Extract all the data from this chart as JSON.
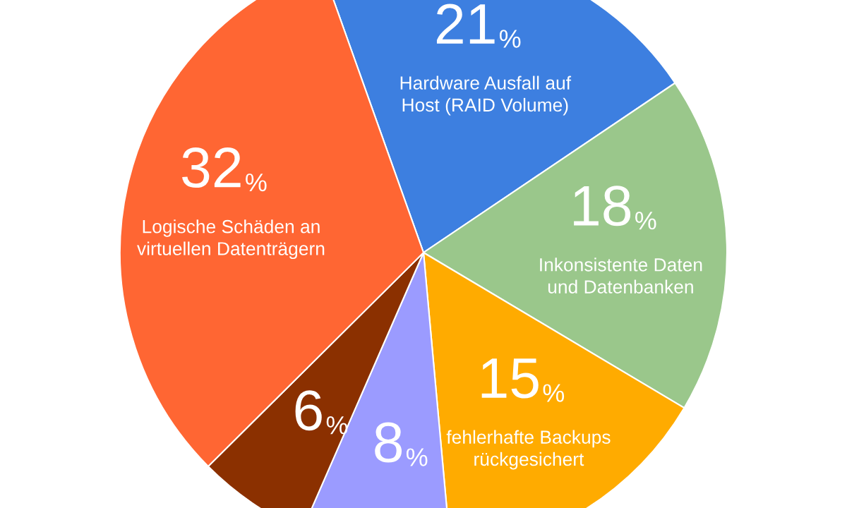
{
  "chart_data": {
    "type": "pie",
    "categories": [
      "Hardware Ausfall auf\nHost (RAID Volume)",
      "Inkonsistente Daten\nund Datenbanken",
      "fehlerhafte Backups\nrückgesichert",
      null,
      null,
      "Logische Schäden an\nvirtuellen Datenträgern"
    ],
    "values": [
      21,
      18,
      15,
      8,
      6,
      32
    ],
    "colors": [
      "#3d7fe0",
      "#9ac78b",
      "#ffab00",
      "#9b9bff",
      "#8b3000",
      "#ff6633"
    ],
    "value_labels": [
      "21%",
      "18%",
      "15%",
      "8%",
      "6%",
      "32%"
    ]
  }
}
